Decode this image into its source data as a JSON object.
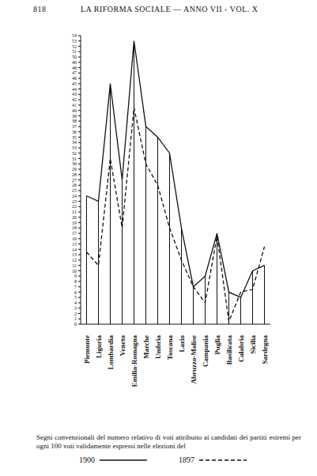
{
  "chart_data": {
    "type": "line",
    "header": {
      "page": "818",
      "running_title": "LA RIFORMA SOCIALE — ANNO VII - VOL. X"
    },
    "title": "Segni convenzionali del numero relativo di voti attribuito ai candidati dei partiti estremi per ogni 100 voti validamente espressi nelle elezioni del",
    "categories": [
      "Piemonte",
      "Liguria",
      "Lombardia",
      "Veneto",
      "Emilia-Romagna",
      "Marche",
      "Umbria",
      "Toscana",
      "Lazio",
      "Abruzzo-Molise",
      "Campania",
      "Puglia",
      "Basilicata",
      "Calabria",
      "Sicilia",
      "Sardegna"
    ],
    "series": [
      {
        "name": "1900",
        "color": "#111111",
        "line_style": "solid",
        "values": [
          24,
          23,
          45,
          27,
          53,
          37,
          35,
          32,
          18,
          7,
          9,
          17,
          6,
          5,
          10,
          11
        ]
      },
      {
        "name": "1897",
        "color": "#111111",
        "line_style": "dashed",
        "values": [
          13.5,
          11,
          31,
          18,
          40.5,
          30,
          26,
          18,
          12,
          7,
          4,
          16.5,
          0.5,
          6,
          6.5,
          14.5
        ]
      }
    ],
    "ylim": [
      0,
      54
    ],
    "yticks": [
      0,
      1,
      2,
      3,
      4,
      5,
      6,
      7,
      8,
      9,
      10,
      11,
      12,
      13,
      14,
      15,
      16,
      17,
      18,
      19,
      20,
      21,
      22,
      23,
      24,
      25,
      26,
      27,
      28,
      29,
      30,
      31,
      32,
      33,
      34,
      35,
      36,
      37,
      38,
      39,
      40,
      41,
      42,
      43,
      44,
      45,
      46,
      47,
      48,
      49,
      50,
      51,
      52,
      53,
      54
    ],
    "grid": false,
    "legend": "bottom"
  }
}
